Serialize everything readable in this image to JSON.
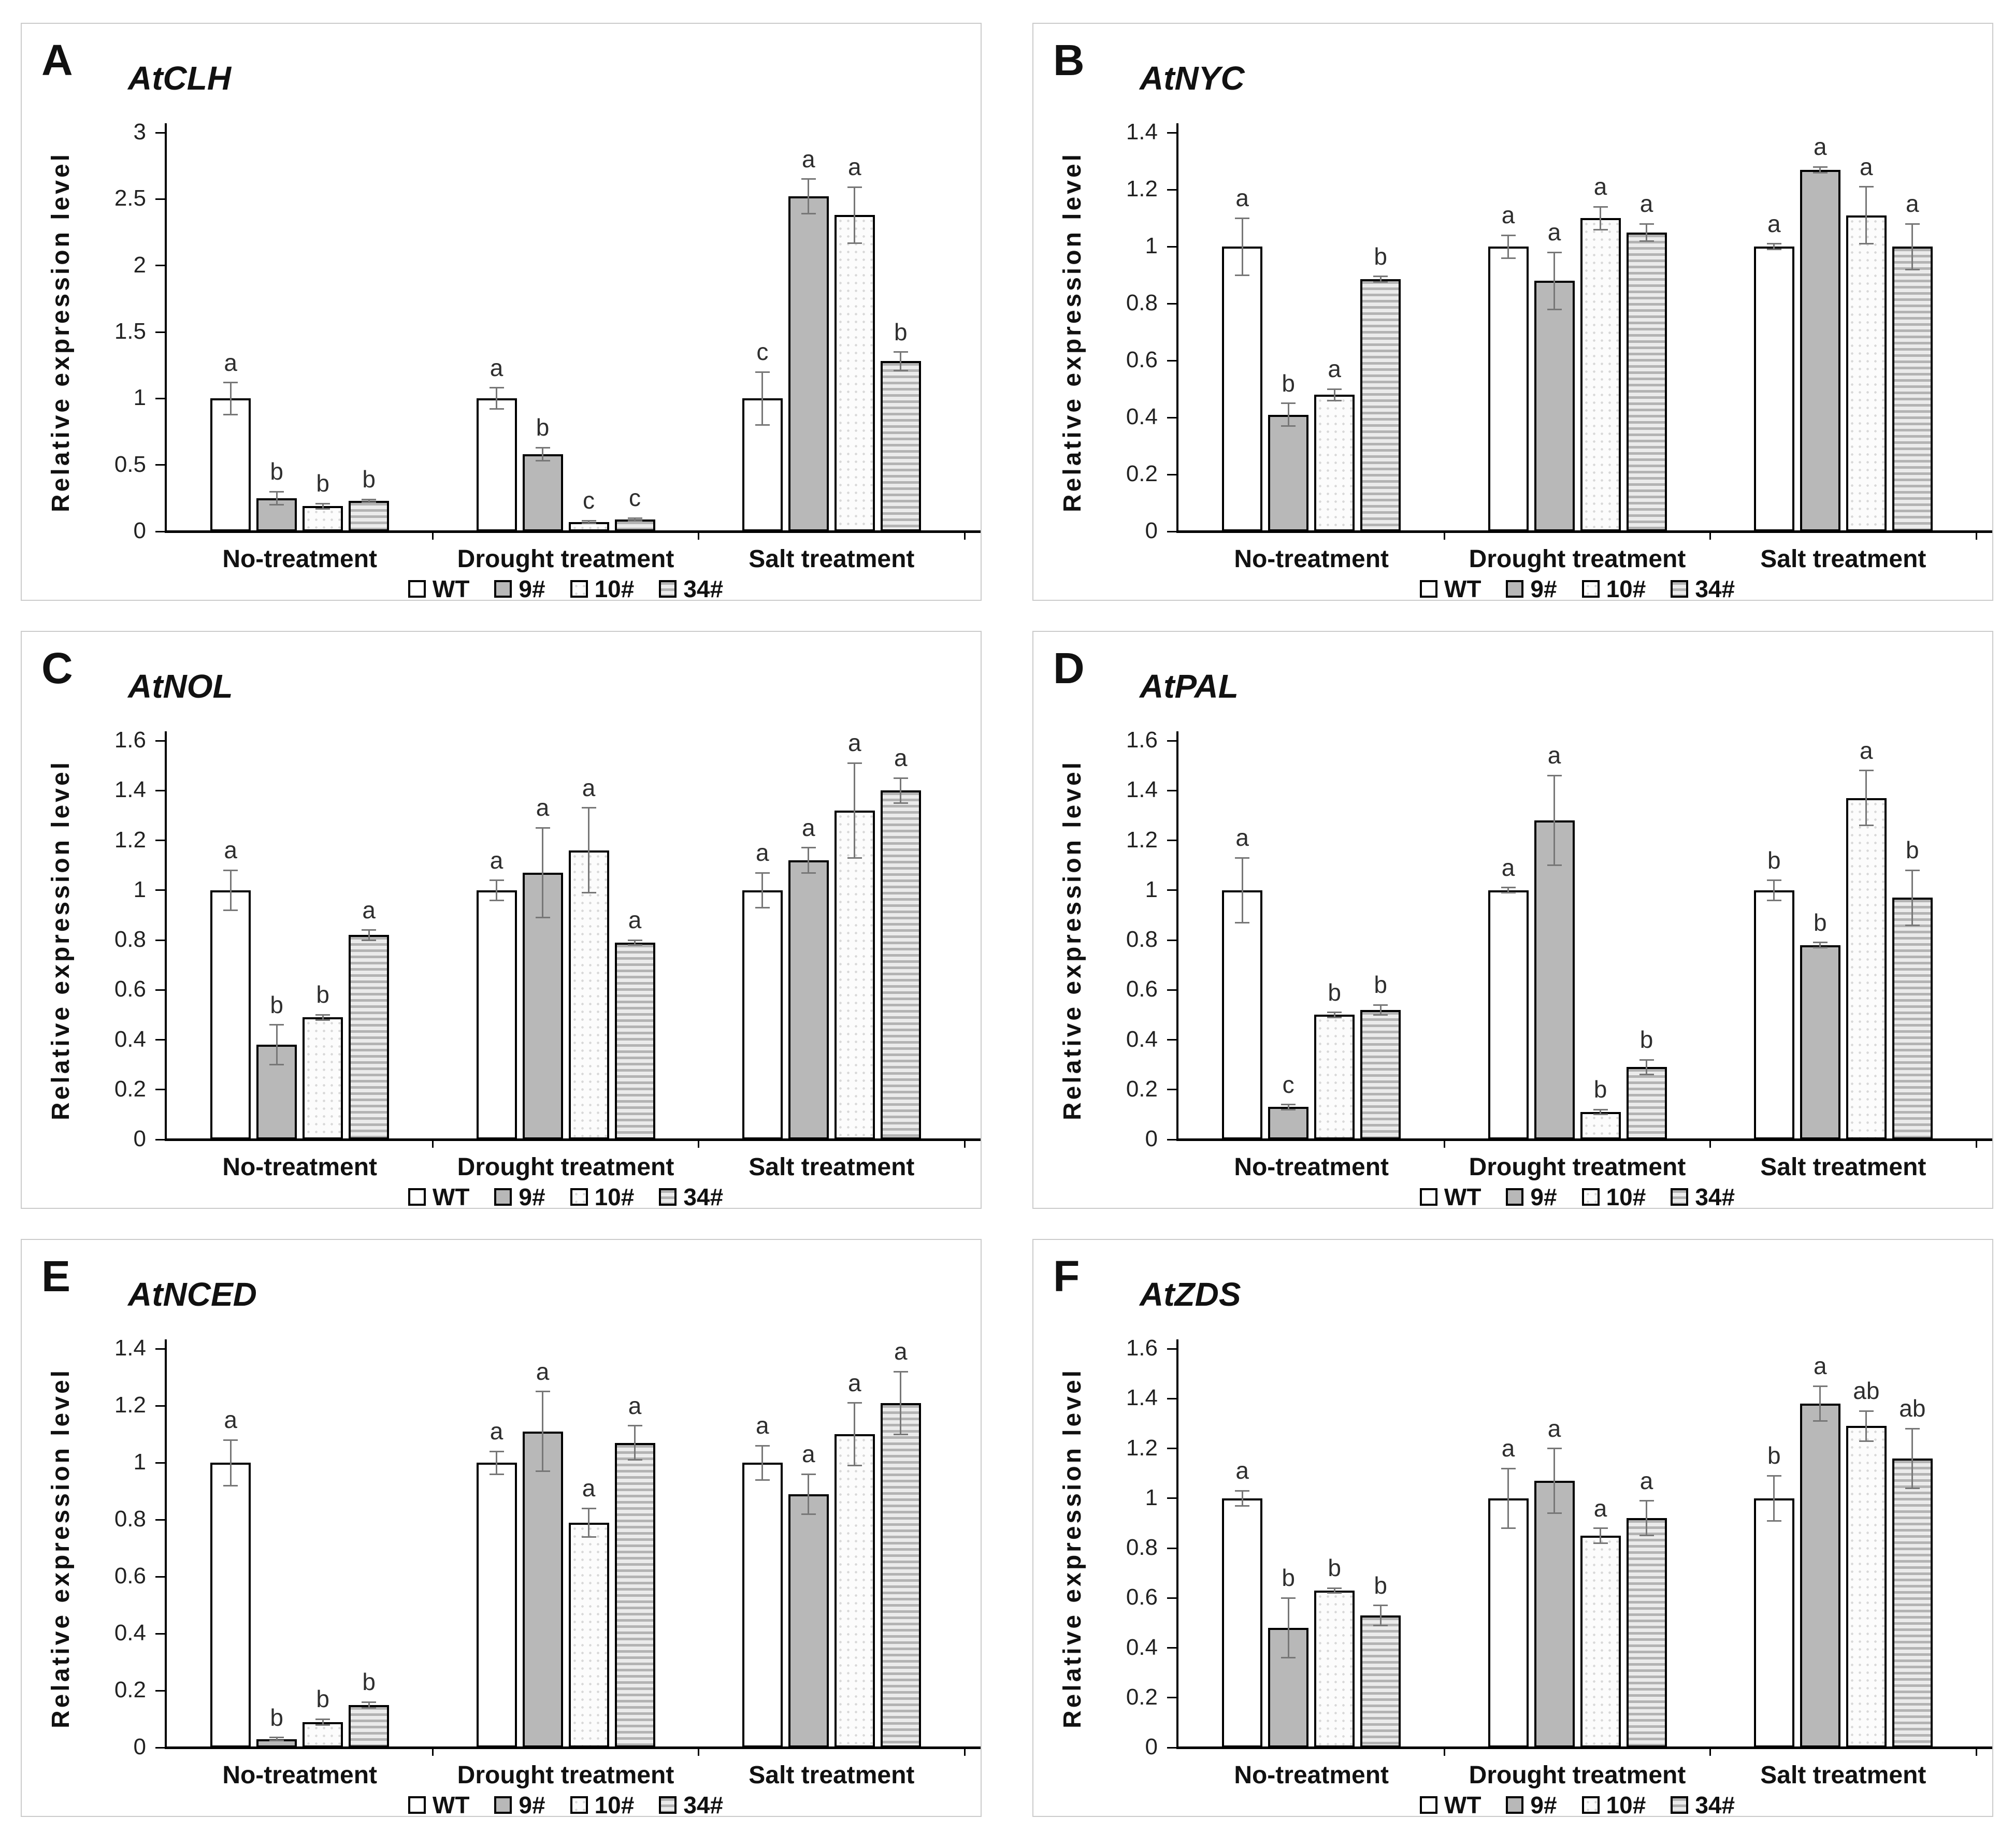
{
  "figure": {
    "ylabel": "Relative expression level",
    "categories": [
      "No-treatment",
      "Drought treatment",
      "Salt treatment"
    ],
    "legend": [
      "WT",
      "9#",
      "10#",
      "34#"
    ],
    "colors": {
      "bar_border": "#000000",
      "wt_fill": "#ffffff",
      "gray_fill": "#b8b8b8",
      "dotted_fill": "#fcfcfc",
      "striped_fill": "#b3b3b3",
      "error_bar": "#777777",
      "panel_border": "#cbcbcb"
    }
  },
  "chart_data": [
    {
      "panel": "A",
      "title": "AtCLH",
      "type": "bar",
      "ylabel": "Relative expression level",
      "ymax": 3,
      "yticks": [
        "0",
        "0.5",
        "1",
        "1.5",
        "2",
        "2.5",
        "3"
      ],
      "categories": [
        "No-treatment",
        "Drought treatment",
        "Salt treatment"
      ],
      "legend_position": "bottom",
      "grid": false,
      "series": [
        {
          "name": "WT",
          "values": [
            1.0,
            1.0,
            1.0
          ],
          "errors": [
            0.12,
            0.08,
            0.2
          ],
          "letters": [
            "a",
            "a",
            "c"
          ]
        },
        {
          "name": "9#",
          "values": [
            0.25,
            0.58,
            2.52
          ],
          "errors": [
            0.05,
            0.05,
            0.13
          ],
          "letters": [
            "b",
            "b",
            "a"
          ]
        },
        {
          "name": "10#",
          "values": [
            0.19,
            0.07,
            2.38
          ],
          "errors": [
            0.02,
            0.01,
            0.21
          ],
          "letters": [
            "b",
            "c",
            "a"
          ]
        },
        {
          "name": "34#",
          "values": [
            0.23,
            0.09,
            1.28
          ],
          "errors": [
            0.01,
            0.01,
            0.07
          ],
          "letters": [
            "b",
            "c",
            "b"
          ]
        }
      ]
    },
    {
      "panel": "B",
      "title": "AtNYC",
      "type": "bar",
      "ylabel": "Relative expression level",
      "ymax": 1.4,
      "yticks": [
        "0",
        "0.2",
        "0.4",
        "0.6",
        "0.8",
        "1",
        "1.2",
        "1.4"
      ],
      "categories": [
        "No-treatment",
        "Drought treatment",
        "Salt treatment"
      ],
      "legend_position": "bottom",
      "grid": false,
      "series": [
        {
          "name": "WT",
          "values": [
            1.0,
            1.0,
            1.0
          ],
          "errors": [
            0.1,
            0.04,
            0.01
          ],
          "letters": [
            "a",
            "a",
            "a"
          ]
        },
        {
          "name": "9#",
          "values": [
            0.41,
            0.88,
            1.27
          ],
          "errors": [
            0.04,
            0.1,
            0.01
          ],
          "letters": [
            "b",
            "a",
            "a"
          ]
        },
        {
          "name": "10#",
          "values": [
            0.48,
            1.1,
            1.11
          ],
          "errors": [
            0.02,
            0.04,
            0.1
          ],
          "letters": [
            "a",
            "a",
            "a"
          ]
        },
        {
          "name": "34#",
          "values": [
            0.885,
            1.05,
            1.0
          ],
          "errors": [
            0.01,
            0.03,
            0.08
          ],
          "letters": [
            "b",
            "a",
            "a"
          ]
        }
      ]
    },
    {
      "panel": "C",
      "title": "AtNOL",
      "type": "bar",
      "ylabel": "Relative expression level",
      "ymax": 1.6,
      "yticks": [
        "0",
        "0.2",
        "0.4",
        "0.6",
        "0.8",
        "1",
        "1.2",
        "1.4",
        "1.6"
      ],
      "categories": [
        "No-treatment",
        "Drought treatment",
        "Salt treatment"
      ],
      "legend_position": "bottom",
      "grid": false,
      "series": [
        {
          "name": "WT",
          "values": [
            1.0,
            1.0,
            1.0
          ],
          "errors": [
            0.08,
            0.04,
            0.07
          ],
          "letters": [
            "a",
            "a",
            "a"
          ]
        },
        {
          "name": "9#",
          "values": [
            0.38,
            1.07,
            1.12
          ],
          "errors": [
            0.08,
            0.18,
            0.05
          ],
          "letters": [
            "b",
            "a",
            "a"
          ]
        },
        {
          "name": "10#",
          "values": [
            0.49,
            1.16,
            1.32
          ],
          "errors": [
            0.01,
            0.17,
            0.19
          ],
          "letters": [
            "b",
            "a",
            "a"
          ]
        },
        {
          "name": "34#",
          "values": [
            0.82,
            0.79,
            1.4
          ],
          "errors": [
            0.02,
            0.01,
            0.05
          ],
          "letters": [
            "a",
            "a",
            "a"
          ]
        }
      ]
    },
    {
      "panel": "D",
      "title": "AtPAL",
      "type": "bar",
      "ylabel": "Relative expression level",
      "ymax": 1.6,
      "yticks": [
        "0",
        "0.2",
        "0.4",
        "0.6",
        "0.8",
        "1",
        "1.2",
        "1.4",
        "1.6"
      ],
      "categories": [
        "No-treatment",
        "Drought treatment",
        "Salt treatment"
      ],
      "legend_position": "bottom",
      "grid": false,
      "series": [
        {
          "name": "WT",
          "values": [
            1.0,
            1.0,
            1.0
          ],
          "errors": [
            0.13,
            0.01,
            0.04
          ],
          "letters": [
            "a",
            "a",
            "b"
          ]
        },
        {
          "name": "9#",
          "values": [
            0.13,
            1.28,
            0.78
          ],
          "errors": [
            0.01,
            0.18,
            0.01
          ],
          "letters": [
            "c",
            "a",
            "b"
          ]
        },
        {
          "name": "10#",
          "values": [
            0.5,
            0.11,
            1.37
          ],
          "errors": [
            0.01,
            0.01,
            0.11
          ],
          "letters": [
            "b",
            "b",
            "a"
          ]
        },
        {
          "name": "34#",
          "values": [
            0.52,
            0.29,
            0.97
          ],
          "errors": [
            0.02,
            0.03,
            0.11
          ],
          "letters": [
            "b",
            "b",
            "b"
          ]
        }
      ]
    },
    {
      "panel": "E",
      "title": "AtNCED",
      "type": "bar",
      "ylabel": "Relative expression level",
      "ymax": 1.4,
      "yticks": [
        "0",
        "0.2",
        "0.4",
        "0.6",
        "0.8",
        "1",
        "1.2",
        "1.4"
      ],
      "categories": [
        "No-treatment",
        "Drought treatment",
        "Salt treatment"
      ],
      "legend_position": "bottom",
      "grid": false,
      "series": [
        {
          "name": "WT",
          "values": [
            1.0,
            1.0,
            1.0
          ],
          "errors": [
            0.08,
            0.04,
            0.06
          ],
          "letters": [
            "a",
            "a",
            "a"
          ]
        },
        {
          "name": "9#",
          "values": [
            0.03,
            1.11,
            0.89
          ],
          "errors": [
            0.005,
            0.14,
            0.07
          ],
          "letters": [
            "b",
            "a",
            "a"
          ]
        },
        {
          "name": "10#",
          "values": [
            0.09,
            0.79,
            1.1
          ],
          "errors": [
            0.01,
            0.05,
            0.11
          ],
          "letters": [
            "b",
            "a",
            "a"
          ]
        },
        {
          "name": "34#",
          "values": [
            0.15,
            1.07,
            1.21
          ],
          "errors": [
            0.01,
            0.06,
            0.11
          ],
          "letters": [
            "b",
            "a",
            "a"
          ]
        }
      ]
    },
    {
      "panel": "F",
      "title": "AtZDS",
      "type": "bar",
      "ylabel": "Relative expression level",
      "ymax": 1.6,
      "yticks": [
        "0",
        "0.2",
        "0.4",
        "0.6",
        "0.8",
        "1",
        "1.2",
        "1.4",
        "1.6"
      ],
      "categories": [
        "No-treatment",
        "Drought treatment",
        "Salt treatment"
      ],
      "legend_position": "bottom",
      "grid": false,
      "series": [
        {
          "name": "WT",
          "values": [
            1.0,
            1.0,
            1.0
          ],
          "errors": [
            0.03,
            0.12,
            0.09
          ],
          "letters": [
            "a",
            "a",
            "b"
          ]
        },
        {
          "name": "9#",
          "values": [
            0.48,
            1.07,
            1.38
          ],
          "errors": [
            0.12,
            0.13,
            0.07
          ],
          "letters": [
            "b",
            "a",
            "a"
          ]
        },
        {
          "name": "10#",
          "values": [
            0.63,
            0.85,
            1.29
          ],
          "errors": [
            0.01,
            0.03,
            0.06
          ],
          "letters": [
            "b",
            "a",
            "ab"
          ]
        },
        {
          "name": "34#",
          "values": [
            0.53,
            0.92,
            1.16
          ],
          "errors": [
            0.04,
            0.07,
            0.12
          ],
          "letters": [
            "b",
            "a",
            "ab"
          ]
        }
      ]
    }
  ]
}
